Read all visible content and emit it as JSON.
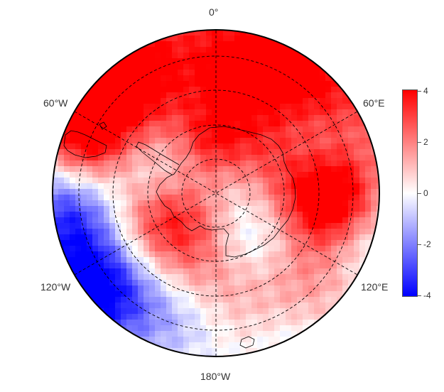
{
  "map": {
    "projection": "south-polar-stereographic",
    "longitude_labels": {
      "top": "0°",
      "upper_left": "60°W",
      "upper_right": "60°E",
      "lower_left": "120°W",
      "lower_right": "120°E",
      "bottom": "180°W"
    },
    "colorbar": {
      "min": -4,
      "max": 4,
      "ticks": [
        "4",
        "2",
        "0",
        "-2",
        "-4"
      ],
      "colors": {
        "high": "#ff0000",
        "mid": "#ffffff",
        "low": "#0000ff"
      }
    },
    "colors": {
      "outline": "#000000",
      "graticule": "#000000",
      "coastline": "#000000"
    }
  }
}
